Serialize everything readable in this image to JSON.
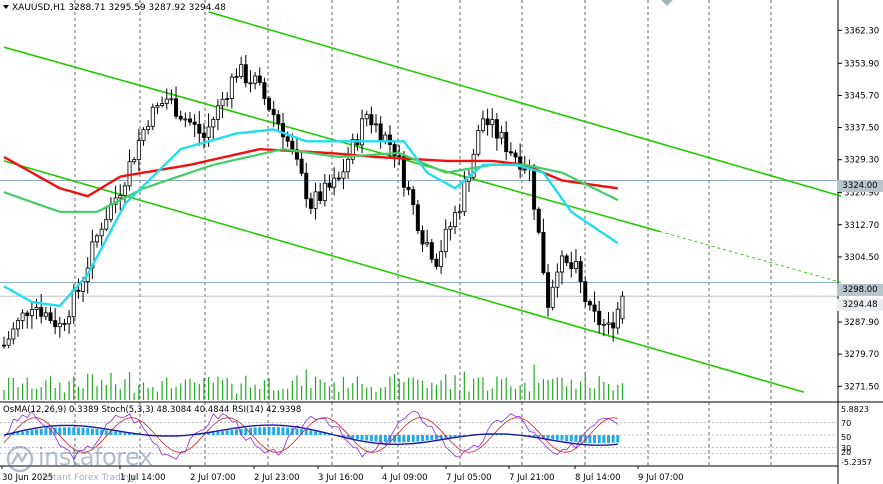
{
  "colors": {
    "background": "#ffffff",
    "candle": "#000000",
    "grid": "#000000",
    "channel": "#22cc00",
    "ma_long": "#ee1111",
    "ma_mid": "#44cc66",
    "ma_fast": "#22ddee",
    "macd_hist": "#22aaee",
    "stoch_main": "#8a2be2",
    "stoch_signal": "#cc2222",
    "rsi": "#1a1aa0",
    "level_line": "#6a8fa8",
    "tag_bg": "#b8c4cc",
    "tag_bg_current": "#e9ecef"
  },
  "header": {
    "title": "XAUUSD,H1  3288.71 3295.59 3287.92 3294.48"
  },
  "price_tags": {
    "level_upper": "3324.00",
    "level_lower": "3298.00",
    "current": "3294.48"
  },
  "indicator_header": "OsMA(12,26,9) 0.3389  Stoch(5,3,3) 48.3084 40.4844  RSI(14) 42.9398",
  "watermark": {
    "name": "instaforex",
    "tagline": "Instant Forex Trading"
  },
  "chart_data": {
    "type": "candlestick",
    "title": "XAUUSD,H1",
    "ohlc": {
      "open": 3288.71,
      "high": 3295.59,
      "low": 3287.92,
      "close": 3294.48
    },
    "ylim": [
      3268.0,
      3368.0
    ],
    "price_ticks": [
      "3362.30",
      "3353.90",
      "3345.70",
      "3337.50",
      "3329.30",
      "3320.90",
      "3312.70",
      "3304.50",
      "3287.90",
      "3279.70",
      "3271.50"
    ],
    "time_labels": [
      "30 Jun 2025",
      "1 Jul 14:00",
      "2 Jul 07:00",
      "2 Jul 23:00",
      "3 Jul 16:00",
      "4 Jul 09:00",
      "7 Jul 05:00",
      "7 Jul 21:00",
      "8 Jul 14:00",
      "9 Jul 07:00"
    ],
    "horizontal_levels": [
      3324.0,
      3298.0,
      3294.48
    ],
    "bars": 117,
    "close_anchors": [
      [
        0,
        3282
      ],
      [
        6,
        3293
      ],
      [
        12,
        3287
      ],
      [
        16,
        3296
      ],
      [
        21,
        3313
      ],
      [
        25,
        3322
      ],
      [
        31,
        3340
      ],
      [
        35,
        3345
      ],
      [
        43,
        3335
      ],
      [
        50,
        3352
      ],
      [
        54,
        3349
      ],
      [
        60,
        3337
      ],
      [
        66,
        3318
      ],
      [
        72,
        3324
      ],
      [
        78,
        3341
      ],
      [
        84,
        3332
      ],
      [
        90,
        3310
      ],
      [
        93,
        3304
      ],
      [
        98,
        3318
      ],
      [
        103,
        3340
      ],
      [
        108,
        3333
      ],
      [
        113,
        3327
      ],
      [
        117,
        3293
      ],
      [
        119,
        3303
      ],
      [
        123,
        3301
      ],
      [
        126,
        3290
      ],
      [
        130,
        3286
      ],
      [
        133,
        3294
      ]
    ],
    "ma_long": [
      [
        0,
        3330
      ],
      [
        12,
        3322
      ],
      [
        18,
        3320
      ],
      [
        25,
        3325
      ],
      [
        40,
        3328
      ],
      [
        55,
        3332
      ],
      [
        70,
        3331
      ],
      [
        80,
        3330
      ],
      [
        95,
        3329
      ],
      [
        105,
        3329
      ],
      [
        112,
        3328
      ],
      [
        120,
        3324
      ],
      [
        132,
        3322
      ]
    ],
    "ma_mid": [
      [
        0,
        3321
      ],
      [
        12,
        3316
      ],
      [
        20,
        3316
      ],
      [
        30,
        3322
      ],
      [
        45,
        3328
      ],
      [
        60,
        3332
      ],
      [
        72,
        3330
      ],
      [
        85,
        3331
      ],
      [
        95,
        3326
      ],
      [
        105,
        3328
      ],
      [
        112,
        3328
      ],
      [
        120,
        3326
      ],
      [
        132,
        3319
      ]
    ],
    "ma_fast": [
      [
        0,
        3297
      ],
      [
        6,
        3293
      ],
      [
        12,
        3292
      ],
      [
        18,
        3300
      ],
      [
        26,
        3318
      ],
      [
        38,
        3332
      ],
      [
        50,
        3336
      ],
      [
        58,
        3337
      ],
      [
        65,
        3334
      ],
      [
        75,
        3334
      ],
      [
        86,
        3334
      ],
      [
        91,
        3326
      ],
      [
        97,
        3322
      ],
      [
        103,
        3328
      ],
      [
        110,
        3328
      ],
      [
        116,
        3326
      ],
      [
        122,
        3316
      ],
      [
        132,
        3308
      ]
    ],
    "indicators": {
      "OsMA": {
        "fast": 12,
        "slow": 26,
        "signal": 9,
        "value": 0.3389
      },
      "Stoch": {
        "k": 5,
        "d": 3,
        "slowing": 3,
        "main": 48.3084,
        "signal": 40.4844
      },
      "RSI": {
        "period": 14,
        "value": 42.9398
      },
      "ticks": [
        "5.8823",
        "70",
        "50",
        "30",
        "20",
        "-5.2357"
      ]
    }
  }
}
